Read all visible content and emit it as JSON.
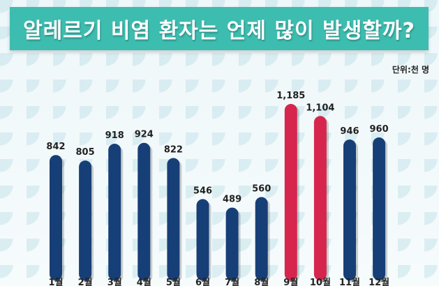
{
  "title": "알레르기 비염 환자는 언제 많이 발생할까?",
  "unit": "단위:천 명",
  "colors": {
    "accent": "#3dbdb0",
    "bar_default": "#173f77",
    "bar_highlight": "#d6264e"
  },
  "chart_data": {
    "type": "bar",
    "title": "알레르기 비염 환자는 언제 많이 발생할까?",
    "xlabel": "",
    "ylabel": "",
    "categories": [
      "1월",
      "2월",
      "3월",
      "4월",
      "5월",
      "6월",
      "7월",
      "8월",
      "9월",
      "10월",
      "11월",
      "12월"
    ],
    "values": [
      842,
      805,
      918,
      924,
      822,
      546,
      489,
      560,
      1185,
      1104,
      946,
      960
    ],
    "value_labels": [
      "842",
      "805",
      "918",
      "924",
      "822",
      "546",
      "489",
      "560",
      "1,185",
      "1,104",
      "946",
      "960"
    ],
    "highlight": [
      "9월",
      "10월"
    ],
    "grid": false,
    "legend": "none"
  }
}
